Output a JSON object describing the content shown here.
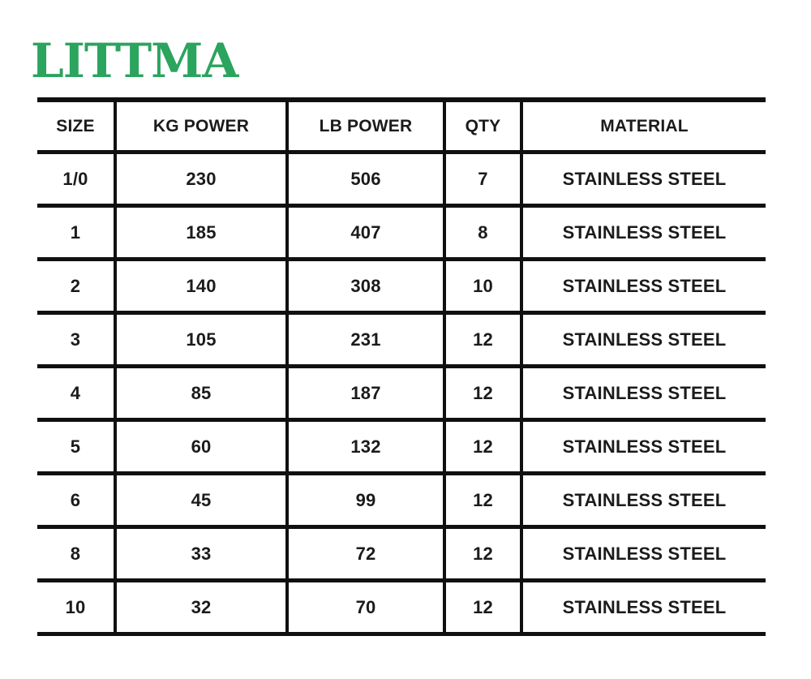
{
  "brand": {
    "title": "LITTMA",
    "color": "#2BA45E"
  },
  "table": {
    "border_color": "#101010",
    "text_color": "#1b1b1b",
    "headers": {
      "size": "SIZE",
      "kg": "KG POWER",
      "lb": "LB POWER",
      "qty": "QTY",
      "material": "MATERIAL"
    },
    "rows": [
      {
        "size": "1/0",
        "kg": "230",
        "lb": "506",
        "qty": "7",
        "material": "STAINLESS STEEL"
      },
      {
        "size": "1",
        "kg": "185",
        "lb": "407",
        "qty": "8",
        "material": "STAINLESS STEEL"
      },
      {
        "size": "2",
        "kg": "140",
        "lb": "308",
        "qty": "10",
        "material": "STAINLESS STEEL"
      },
      {
        "size": "3",
        "kg": "105",
        "lb": "231",
        "qty": "12",
        "material": "STAINLESS STEEL"
      },
      {
        "size": "4",
        "kg": "85",
        "lb": "187",
        "qty": "12",
        "material": "STAINLESS STEEL"
      },
      {
        "size": "5",
        "kg": "60",
        "lb": "132",
        "qty": "12",
        "material": "STAINLESS STEEL"
      },
      {
        "size": "6",
        "kg": "45",
        "lb": "99",
        "qty": "12",
        "material": "STAINLESS STEEL"
      },
      {
        "size": "8",
        "kg": "33",
        "lb": "72",
        "qty": "12",
        "material": "STAINLESS STEEL"
      },
      {
        "size": "10",
        "kg": "32",
        "lb": "70",
        "qty": "12",
        "material": "STAINLESS STEEL"
      }
    ]
  },
  "chart_data": {
    "type": "table",
    "title": "LITTMA",
    "columns": [
      "SIZE",
      "KG POWER",
      "LB POWER",
      "QTY",
      "MATERIAL"
    ],
    "rows": [
      [
        "1/0",
        230,
        506,
        7,
        "STAINLESS STEEL"
      ],
      [
        "1",
        185,
        407,
        8,
        "STAINLESS STEEL"
      ],
      [
        "2",
        140,
        308,
        10,
        "STAINLESS STEEL"
      ],
      [
        "3",
        105,
        231,
        12,
        "STAINLESS STEEL"
      ],
      [
        "4",
        85,
        187,
        12,
        "STAINLESS STEEL"
      ],
      [
        "5",
        60,
        132,
        12,
        "STAINLESS STEEL"
      ],
      [
        "6",
        45,
        99,
        12,
        "STAINLESS STEEL"
      ],
      [
        "8",
        33,
        72,
        12,
        "STAINLESS STEEL"
      ],
      [
        "10",
        32,
        70,
        12,
        "STAINLESS STEEL"
      ]
    ]
  }
}
